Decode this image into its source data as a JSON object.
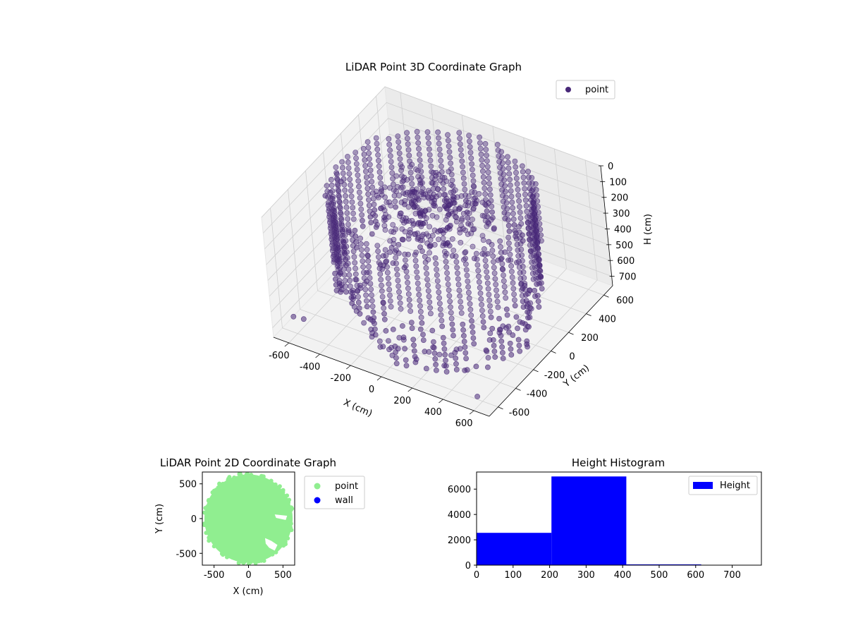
{
  "chart_data": [
    {
      "type": "scatter3d",
      "title": "LiDAR Point 3D Coordinate Graph",
      "xlabel": "X (cm)",
      "ylabel": "Y (cm)",
      "zlabel": "H (cm)",
      "xlim": [
        -700,
        700
      ],
      "ylim": [
        -700,
        700
      ],
      "zlim": [
        0,
        760
      ],
      "z_inverted": true,
      "xticks": [
        -600,
        -400,
        -200,
        0,
        200,
        400,
        600
      ],
      "yticks": [
        -600,
        -400,
        -200,
        0,
        200,
        400,
        600
      ],
      "zticks": [
        0,
        100,
        200,
        300,
        400,
        500,
        600,
        700
      ],
      "legend": {
        "entries": [
          "point"
        ],
        "placement": "top-right"
      },
      "grid": true,
      "series": [
        {
          "name": "point",
          "color": "#482878",
          "shape": "ring of points around the scanner, radius about 600 cm, heights between about 0 and 760 cm, with scattered outliers",
          "ring_radius": 600,
          "outliers": [
            {
              "x": -650,
              "y": -100,
              "z": 200
            },
            {
              "x": -600,
              "y": 0,
              "z": 150
            },
            {
              "x": -500,
              "y": -300,
              "z": 400
            },
            {
              "x": -450,
              "y": -200,
              "z": 300
            },
            {
              "x": -400,
              "y": 100,
              "z": 200
            },
            {
              "x": -300,
              "y": -400,
              "z": 500
            },
            {
              "x": -200,
              "y": -300,
              "z": 600
            },
            {
              "x": -100,
              "y": -200,
              "z": 400
            },
            {
              "x": 0,
              "y": -500,
              "z": 700
            },
            {
              "x": 100,
              "y": -400,
              "z": 600
            },
            {
              "x": 300,
              "y": -500,
              "z": 700
            },
            {
              "x": 500,
              "y": -600,
              "z": 600
            },
            {
              "x": 600,
              "y": -650,
              "z": 700
            },
            {
              "x": -650,
              "y": -550,
              "z": 700
            },
            {
              "x": -550,
              "y": -600,
              "z": 650
            },
            {
              "x": 650,
              "y": -300,
              "z": 500
            },
            {
              "x": 640,
              "y": -150,
              "z": 650
            }
          ]
        }
      ]
    },
    {
      "type": "scatter",
      "title": "LiDAR Point 2D Coordinate Graph",
      "xlabel": "X (cm)",
      "ylabel": "Y (cm)",
      "xlim": [
        -670,
        670
      ],
      "ylim": [
        -670,
        670
      ],
      "xticks": [
        -500,
        0,
        500
      ],
      "yticks": [
        -500,
        0,
        500
      ],
      "legend": {
        "entries": [
          "point",
          "wall"
        ],
        "placement": "outside right"
      },
      "series": [
        {
          "name": "point",
          "color": "#90ee90",
          "shape": "filled disc of points radius about 640 cm"
        },
        {
          "name": "wall",
          "color": "#0000ff",
          "points": []
        }
      ]
    },
    {
      "type": "bar",
      "title": "Height Histogram",
      "xlim": [
        0,
        780
      ],
      "ylim": [
        0,
        7350
      ],
      "xticks": [
        0,
        100,
        200,
        300,
        400,
        500,
        600,
        700
      ],
      "yticks": [
        0,
        2000,
        4000,
        6000
      ],
      "legend": {
        "entries": [
          "Height"
        ],
        "placement": "top-right"
      },
      "series": [
        {
          "name": "Height",
          "color": "#0000ff",
          "bin_edges": [
            0,
            205,
            410,
            615,
            820
          ],
          "values": [
            2550,
            7000,
            60,
            0
          ]
        }
      ]
    }
  ]
}
